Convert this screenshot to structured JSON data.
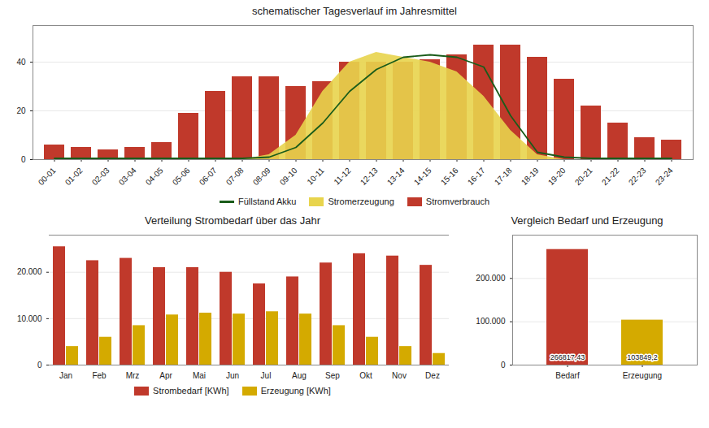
{
  "chart_data": [
    {
      "type": "bar",
      "title": "schematischer Tagesverlauf im Jahresmittel",
      "categories": [
        "00-01",
        "01-02",
        "02-03",
        "03-04",
        "04-05",
        "05-06",
        "06-07",
        "07-08",
        "08-09",
        "09-10",
        "10-11",
        "11-12",
        "12-13",
        "13-14",
        "14-15",
        "15-16",
        "16-17",
        "17-18",
        "18-19",
        "19-20",
        "20-21",
        "21-22",
        "22-23",
        "23-24"
      ],
      "series": [
        {
          "name": "Füllstand Akku",
          "type": "line",
          "color": "#1a5c1a",
          "values": [
            0.5,
            0.5,
            0.5,
            0.5,
            0.5,
            0.5,
            0.5,
            0.5,
            1,
            5,
            15,
            28,
            37,
            42,
            43,
            42,
            38,
            18,
            3,
            1,
            0.5,
            0.5,
            0.5,
            0.5
          ]
        },
        {
          "name": "Stromerzeugung",
          "type": "area",
          "color": "#e8d44d",
          "values": [
            0,
            0,
            0,
            0,
            0,
            0,
            0,
            0,
            2,
            10,
            28,
            40,
            44,
            42,
            40,
            36,
            26,
            12,
            2,
            0,
            0,
            0,
            0,
            0
          ]
        },
        {
          "name": "Stromverbrauch",
          "type": "bar",
          "color": "#c0392b",
          "values": [
            6,
            5,
            4,
            5,
            7,
            19,
            28,
            34,
            34,
            30,
            32,
            40,
            40,
            40,
            41,
            43,
            47,
            47,
            42,
            33,
            22,
            15,
            9,
            8
          ]
        }
      ],
      "ylim": [
        0,
        55
      ],
      "yticks": [
        0,
        20,
        40
      ],
      "grid": true,
      "legend": "bottom"
    },
    {
      "type": "bar",
      "title": "Verteilung Strombedarf über das Jahr",
      "categories": [
        "Jan",
        "Feb",
        "Mrz",
        "Apr",
        "Mai",
        "Jun",
        "Jul",
        "Aug",
        "Sep",
        "Okt",
        "Nov",
        "Dez"
      ],
      "series": [
        {
          "name": "Strombedarf [KWh]",
          "color": "#c0392b",
          "values": [
            25500,
            22500,
            23000,
            21000,
            21000,
            20000,
            17500,
            19000,
            22000,
            24000,
            23500,
            21500
          ]
        },
        {
          "name": "Erzeugung [KWh]",
          "color": "#d4aa00",
          "values": [
            4000,
            6000,
            8500,
            10800,
            11200,
            11000,
            11500,
            11000,
            8500,
            6000,
            4000,
            2500
          ]
        }
      ],
      "ylim": [
        0,
        28000
      ],
      "yticks": [
        0,
        {
          "value": 10000,
          "label": "10.000"
        },
        {
          "value": 20000,
          "label": "20.000"
        }
      ],
      "grid": true,
      "legend": "bottom"
    },
    {
      "type": "bar",
      "title": "Vergleich Bedarf und Erzeugung",
      "categories": [
        "Bedarf",
        "Erzeugung"
      ],
      "values": [
        266817.43,
        103849.2
      ],
      "value_labels": [
        "266817,43",
        "103849,2"
      ],
      "colors": [
        "#c0392b",
        "#d4aa00"
      ],
      "data_labels": true,
      "ylim": [
        0,
        300000
      ],
      "yticks": [
        0,
        {
          "value": 100000,
          "label": "100.000"
        },
        {
          "value": 200000,
          "label": "200.000"
        }
      ],
      "grid": true
    }
  ]
}
